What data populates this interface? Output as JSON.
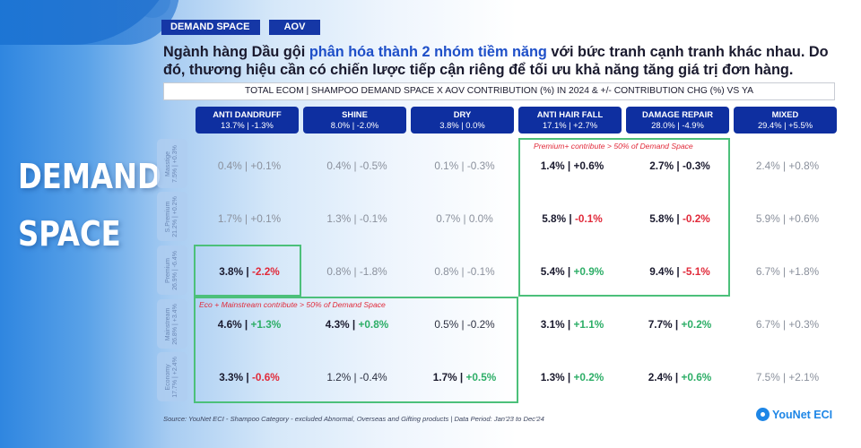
{
  "slide": {
    "big_title_line1": "DEMAND",
    "big_title_line2": "SPACE",
    "tags": [
      "DEMAND SPACE",
      "AOV"
    ],
    "headline": {
      "part1": "Ngành hàng Dầu gội ",
      "highlight": "phân hóa thành 2 nhóm tiềm năng",
      "part2": " với bức tranh cạnh tranh khác nhau. Do đó, thương hiệu cần có chiến lược tiếp cận riêng để tối ưu khả năng tăng giá trị đơn hàng."
    },
    "table_title": "TOTAL ECOM | SHAMPOO DEMAND SPACE X AOV CONTRIBUTION (%) IN 2024 & +/- CONTRIBUTION CHG (%) VS YA",
    "columns": [
      {
        "name": "ANTI DANDRUFF",
        "value": "13.7% | -1.3%"
      },
      {
        "name": "SHINE",
        "value": "8.0% | -2.0%"
      },
      {
        "name": "DRY",
        "value": "3.8% | 0.0%"
      },
      {
        "name": "ANTI HAIR FALL",
        "value": "17.1% | +2.7%"
      },
      {
        "name": "DAMAGE REPAIR",
        "value": "28.0% | -4.9%"
      },
      {
        "name": "MIXED",
        "value": "29.4% | +5.5%"
      }
    ],
    "rows": [
      {
        "name": "Masstige",
        "value": "7.5% | +0.3%"
      },
      {
        "name": "S.Premium",
        "value": "21.2% | +0.2%"
      },
      {
        "name": "Premium",
        "value": "26.9% | -6.4%"
      },
      {
        "name": "Mainstream",
        "value": "26.8% | +3.4%"
      },
      {
        "name": "Economy",
        "value": "17.7% | +2.4%"
      }
    ],
    "cells": [
      [
        {
          "share": "0.4%",
          "chg": "+0.1%",
          "style": "dim",
          "tone": ""
        },
        {
          "share": "0.4%",
          "chg": "-0.5%",
          "style": "dim",
          "tone": ""
        },
        {
          "share": "0.1%",
          "chg": "-0.3%",
          "style": "dim",
          "tone": ""
        },
        {
          "share": "1.4%",
          "chg": "+0.6%",
          "style": "bold",
          "tone": ""
        },
        {
          "share": "2.7%",
          "chg": "-0.3%",
          "style": "bold",
          "tone": ""
        },
        {
          "share": "2.4%",
          "chg": "+0.8%",
          "style": "dim",
          "tone": ""
        }
      ],
      [
        {
          "share": "1.7%",
          "chg": "+0.1%",
          "style": "dim",
          "tone": ""
        },
        {
          "share": "1.3%",
          "chg": "-0.1%",
          "style": "dim",
          "tone": ""
        },
        {
          "share": "0.7%",
          "chg": "0.0%",
          "style": "dim",
          "tone": ""
        },
        {
          "share": "5.8%",
          "chg": "-0.1%",
          "style": "bold",
          "tone": "neg"
        },
        {
          "share": "5.8%",
          "chg": "-0.2%",
          "style": "bold",
          "tone": "neg"
        },
        {
          "share": "5.9%",
          "chg": "+0.6%",
          "style": "dim",
          "tone": ""
        }
      ],
      [
        {
          "share": "3.8%",
          "chg": "-2.2%",
          "style": "bold",
          "tone": "neg"
        },
        {
          "share": "0.8%",
          "chg": "-1.8%",
          "style": "dim",
          "tone": ""
        },
        {
          "share": "0.8%",
          "chg": "-0.1%",
          "style": "dim",
          "tone": ""
        },
        {
          "share": "5.4%",
          "chg": "+0.9%",
          "style": "bold",
          "tone": "pos"
        },
        {
          "share": "9.4%",
          "chg": "-5.1%",
          "style": "bold",
          "tone": "neg"
        },
        {
          "share": "6.7%",
          "chg": "+1.8%",
          "style": "dim",
          "tone": ""
        }
      ],
      [
        {
          "share": "4.6%",
          "chg": "+1.3%",
          "style": "bold",
          "tone": "pos"
        },
        {
          "share": "4.3%",
          "chg": "+0.8%",
          "style": "bold",
          "tone": "pos"
        },
        {
          "share": "0.5%",
          "chg": "-0.2%",
          "style": "dark",
          "tone": ""
        },
        {
          "share": "3.1%",
          "chg": "+1.1%",
          "style": "bold",
          "tone": "pos"
        },
        {
          "share": "7.7%",
          "chg": "+0.2%",
          "style": "bold",
          "tone": "pos"
        },
        {
          "share": "6.7%",
          "chg": "+0.3%",
          "style": "dim",
          "tone": ""
        }
      ],
      [
        {
          "share": "3.3%",
          "chg": "-0.6%",
          "style": "bold",
          "tone": "neg"
        },
        {
          "share": "1.2%",
          "chg": "-0.4%",
          "style": "dark",
          "tone": ""
        },
        {
          "share": "1.7%",
          "chg": "+0.5%",
          "style": "bold",
          "tone": "pos"
        },
        {
          "share": "1.3%",
          "chg": "+0.2%",
          "style": "bold",
          "tone": "pos"
        },
        {
          "share": "2.4%",
          "chg": "+0.6%",
          "style": "bold",
          "tone": "pos"
        },
        {
          "share": "7.5%",
          "chg": "+2.1%",
          "style": "dim",
          "tone": ""
        }
      ]
    ],
    "notes": {
      "premium_box": "Premium+ contribute > 50% of Demand Space",
      "eco_box": "Eco + Mainstream contribute > 50% of Demand Space"
    },
    "source": "Source: YouNet ECI - Shampoo Category - excluded Abnormal, Overseas and Gifting products | Data Period: Jan'23 to Dec'24",
    "logo_text": "YouNet ECI",
    "logo_icon": "younet-logo-icon",
    "colors": {
      "navy": "#0e2fa0",
      "tag": "#1537a6",
      "highlight": "#1e4fc8",
      "positive": "#2dae67",
      "negative": "#e12a3a",
      "box_border": "#4cc07a"
    }
  }
}
